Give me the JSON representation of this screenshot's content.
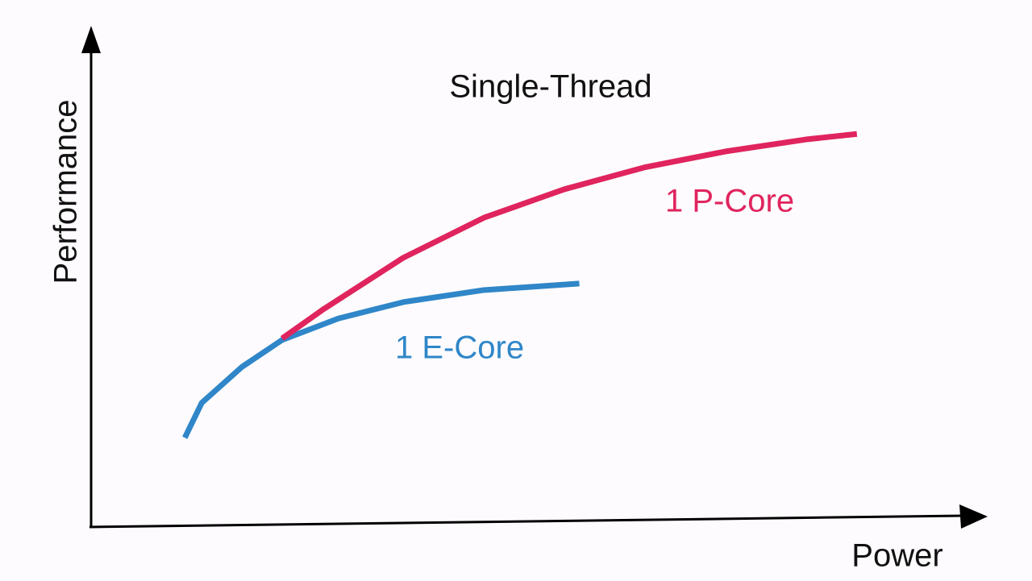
{
  "chart_data": {
    "type": "line",
    "title": "Single-Thread",
    "x_label": "Power",
    "y_label": "Performance",
    "xlim": [
      0,
      100
    ],
    "ylim": [
      0,
      100
    ],
    "series": [
      {
        "name": "1 E-Core",
        "color": "#2f86c8",
        "x": [
          10.5,
          12.4,
          16.9,
          21.4,
          27.7,
          35.0,
          44.0,
          54.7
        ],
        "values": [
          17.9,
          24.9,
          32.1,
          37.5,
          41.8,
          45.1,
          47.5,
          48.8
        ]
      },
      {
        "name": "1 P-Core",
        "color": "#e0245e",
        "x": [
          21.4,
          25.9,
          35.0,
          44.0,
          53.0,
          62.0,
          71.1,
          80.1,
          85.8
        ],
        "values": [
          37.8,
          43.5,
          54.0,
          62.0,
          67.7,
          72.1,
          75.3,
          77.7,
          78.8
        ]
      }
    ]
  }
}
